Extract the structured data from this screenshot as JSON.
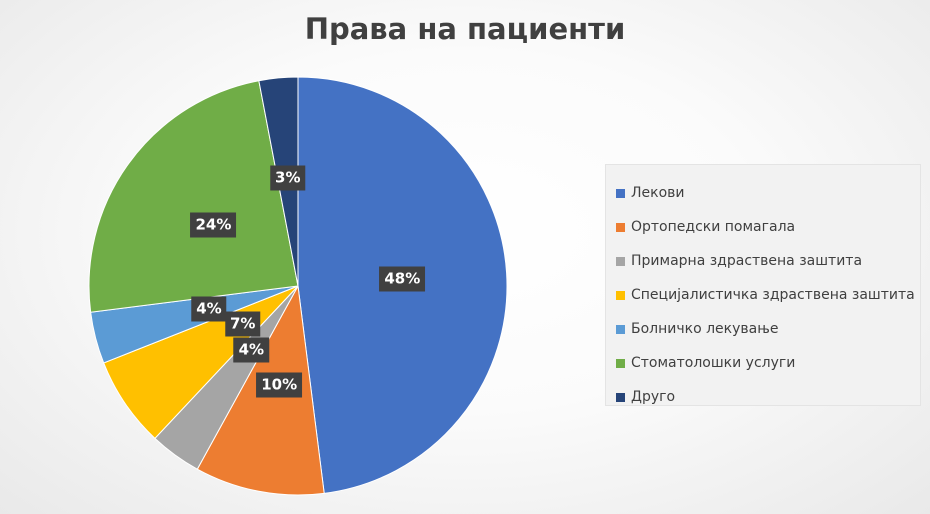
{
  "chart_data": {
    "type": "pie",
    "title": "Права на пациенти",
    "categories": [
      "Лекови",
      "Ортопедски помагала",
      "Примарна здраствена заштита",
      "Специјалистичка здраствена заштита",
      "Болничко лекување",
      "Стоматолошки услуги",
      "Друго"
    ],
    "values": [
      48,
      10,
      4,
      7,
      4,
      24,
      3
    ],
    "labels": [
      "48%",
      "10%",
      "4%",
      "7%",
      "4%",
      "24%",
      "3%"
    ],
    "colors": [
      "#4472C4",
      "#ED7D31",
      "#A5A5A5",
      "#FFC000",
      "#5B9BD5",
      "#70AD47",
      "#264478"
    ],
    "legend_position": "right"
  }
}
